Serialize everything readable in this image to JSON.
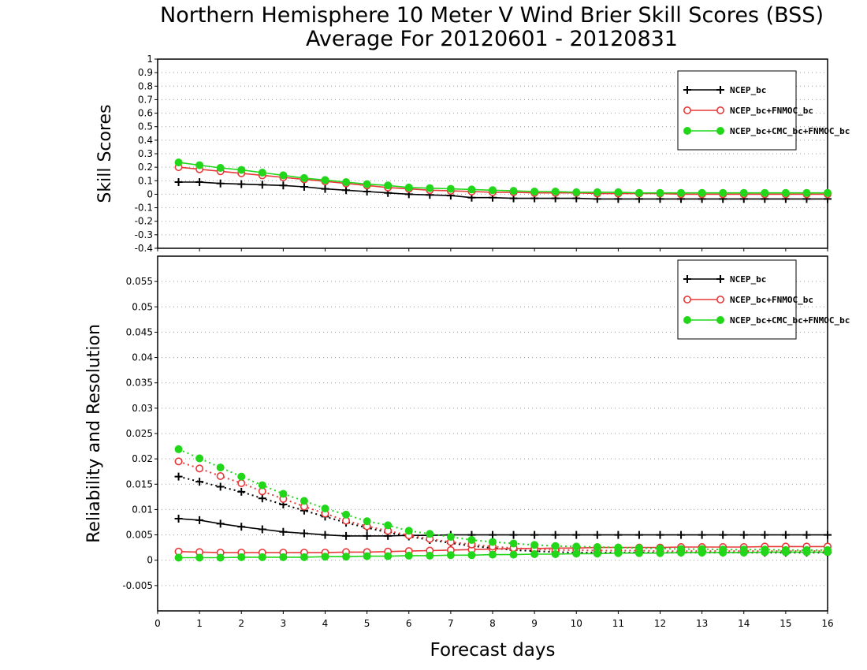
{
  "chart_title_line1": "Northern Hemisphere 10 Meter V Wind Brier Skill Scores (BSS)",
  "chart_title_line2": "Average For 20120601 - 20120831",
  "colors": {
    "black": "#000000",
    "red": "#e8393a",
    "green": "#22d61a",
    "grid": "#9a9a9a"
  },
  "chart_data": [
    {
      "type": "line",
      "panel": "top",
      "ylabel": "Skill Scores",
      "xlabel": "Forecast days",
      "xlim": [
        0,
        16
      ],
      "ylim": [
        -0.4,
        1
      ],
      "xticks": [
        "0",
        "1",
        "2",
        "3",
        "4",
        "5",
        "6",
        "7",
        "8",
        "9",
        "10",
        "11",
        "12",
        "13",
        "14",
        "15",
        "16"
      ],
      "yticks": [
        "1",
        "0.9",
        "0.8",
        "0.7",
        "0.6",
        "0.5",
        "0.4",
        "0.3",
        "0.2",
        "0.1",
        "0",
        "-0.1",
        "-0.2",
        "-0.3",
        "-0.4"
      ],
      "grid": true,
      "legend_position": "top-right",
      "x": [
        0.5,
        1,
        1.5,
        2,
        2.5,
        3,
        3.5,
        4,
        4.5,
        5,
        5.5,
        6,
        6.5,
        7,
        7.5,
        8,
        8.5,
        9,
        9.5,
        10,
        10.5,
        11,
        11.5,
        12,
        12.5,
        13,
        13.5,
        14,
        14.5,
        15,
        15.5,
        16
      ],
      "series": [
        {
          "name": "NCEP_bc",
          "marker": "plus",
          "color": "#000000",
          "values": [
            0.09,
            0.09,
            0.08,
            0.075,
            0.07,
            0.065,
            0.055,
            0.04,
            0.03,
            0.02,
            0.01,
            0.0,
            -0.005,
            -0.01,
            -0.025,
            -0.025,
            -0.03,
            -0.03,
            -0.03,
            -0.03,
            -0.035,
            -0.035,
            -0.035,
            -0.035,
            -0.035,
            -0.035,
            -0.035,
            -0.035,
            -0.035,
            -0.035,
            -0.035,
            -0.035
          ]
        },
        {
          "name": "NCEP_bc+FNMOC_bc",
          "marker": "open-circle",
          "color": "#e8393a",
          "values": [
            0.2,
            0.185,
            0.17,
            0.155,
            0.14,
            0.125,
            0.11,
            0.095,
            0.08,
            0.065,
            0.05,
            0.04,
            0.03,
            0.025,
            0.02,
            0.015,
            0.015,
            0.01,
            0.01,
            0.01,
            0.005,
            0.005,
            0.005,
            0.005,
            0.0,
            0.0,
            0.0,
            0.0,
            0.0,
            0.0,
            0.0,
            0.0
          ]
        },
        {
          "name": "NCEP_bc+CMC_bc+FNMOC_bc",
          "marker": "filled-circle",
          "color": "#22d61a",
          "values": [
            0.235,
            0.215,
            0.195,
            0.18,
            0.16,
            0.14,
            0.12,
            0.105,
            0.09,
            0.075,
            0.065,
            0.05,
            0.045,
            0.04,
            0.035,
            0.03,
            0.025,
            0.02,
            0.02,
            0.015,
            0.015,
            0.015,
            0.01,
            0.01,
            0.01,
            0.01,
            0.01,
            0.01,
            0.01,
            0.01,
            0.01,
            0.01
          ]
        }
      ]
    },
    {
      "type": "line",
      "panel": "bottom",
      "ylabel": "Reliability and Resolution",
      "xlabel": "Forecast days",
      "xlim": [
        0,
        16
      ],
      "ylim": [
        -0.01,
        0.06
      ],
      "xticks": [
        "0",
        "1",
        "2",
        "3",
        "4",
        "5",
        "6",
        "7",
        "8",
        "9",
        "10",
        "11",
        "12",
        "13",
        "14",
        "15",
        "16"
      ],
      "yticks": [
        "0.055",
        "0.05",
        "0.045",
        "0.04",
        "0.035",
        "0.03",
        "0.025",
        "0.02",
        "0.015",
        "0.01",
        "0.005",
        "0",
        "-0.005"
      ],
      "grid": true,
      "legend_position": "top-right",
      "x": [
        0.5,
        1,
        1.5,
        2,
        2.5,
        3,
        3.5,
        4,
        4.5,
        5,
        5.5,
        6,
        6.5,
        7,
        7.5,
        8,
        8.5,
        9,
        9.5,
        10,
        10.5,
        11,
        11.5,
        12,
        12.5,
        13,
        13.5,
        14,
        14.5,
        15,
        15.5,
        16
      ],
      "series": [
        {
          "name": "NCEP_bc",
          "metric": "resolution",
          "style": "solid",
          "marker": "plus",
          "color": "#000000",
          "values": [
            0.0082,
            0.0079,
            0.0072,
            0.0066,
            0.0061,
            0.0056,
            0.0053,
            0.005,
            0.0048,
            0.0048,
            0.0048,
            0.0049,
            0.0049,
            0.005,
            0.005,
            0.005,
            0.005,
            0.005,
            0.005,
            0.005,
            0.005,
            0.005,
            0.005,
            0.005,
            0.005,
            0.005,
            0.005,
            0.005,
            0.005,
            0.005,
            0.005,
            0.005
          ]
        },
        {
          "name": "NCEP_bc",
          "metric": "reliability",
          "style": "dotted",
          "marker": "plus",
          "color": "#000000",
          "values": [
            0.0165,
            0.0155,
            0.0145,
            0.0135,
            0.0122,
            0.011,
            0.0098,
            0.0086,
            0.0074,
            0.0064,
            0.0055,
            0.0047,
            0.004,
            0.0034,
            0.0028,
            0.0024,
            0.002,
            0.0018,
            0.0016,
            0.0015,
            0.0015,
            0.0015,
            0.0015,
            0.0015,
            0.0015,
            0.0015,
            0.0015,
            0.0015,
            0.0015,
            0.0015,
            0.0015,
            0.0015
          ]
        },
        {
          "name": "NCEP_bc+FNMOC_bc",
          "metric": "resolution",
          "style": "solid",
          "marker": "open-circle",
          "color": "#e8393a",
          "values": [
            0.0017,
            0.0016,
            0.0015,
            0.0015,
            0.0015,
            0.0015,
            0.0015,
            0.0015,
            0.0016,
            0.0016,
            0.0017,
            0.0018,
            0.0019,
            0.002,
            0.0021,
            0.0022,
            0.0023,
            0.0023,
            0.0024,
            0.0024,
            0.0025,
            0.0025,
            0.0025,
            0.0025,
            0.0026,
            0.0026,
            0.0026,
            0.0026,
            0.0027,
            0.0027,
            0.0027,
            0.0027
          ]
        },
        {
          "name": "NCEP_bc+FNMOC_bc",
          "metric": "reliability",
          "style": "dotted",
          "marker": "open-circle",
          "color": "#e8393a",
          "values": [
            0.0195,
            0.0181,
            0.0166,
            0.0152,
            0.0136,
            0.0121,
            0.0106,
            0.0092,
            0.0078,
            0.0067,
            0.0058,
            0.0049,
            0.0042,
            0.0036,
            0.0031,
            0.0027,
            0.0024,
            0.0022,
            0.002,
            0.002,
            0.0019,
            0.0019,
            0.0019,
            0.0018,
            0.0018,
            0.0018,
            0.0018,
            0.0018,
            0.0018,
            0.0018,
            0.0018,
            0.0018
          ]
        },
        {
          "name": "NCEP_bc+CMC_bc+FNMOC_bc",
          "metric": "resolution",
          "style": "solid",
          "marker": "filled-circle",
          "color": "#22d61a",
          "values": [
            0.0005,
            0.0005,
            0.0005,
            0.0006,
            0.0006,
            0.0006,
            0.0006,
            0.0007,
            0.0007,
            0.0008,
            0.0008,
            0.0009,
            0.0009,
            0.001,
            0.001,
            0.0011,
            0.0011,
            0.0012,
            0.0012,
            0.0013,
            0.0013,
            0.0014,
            0.0014,
            0.0014,
            0.0015,
            0.0015,
            0.0015,
            0.0015,
            0.0016,
            0.0016,
            0.0016,
            0.0016
          ]
        },
        {
          "name": "NCEP_bc+CMC_bc+FNMOC_bc",
          "metric": "reliability",
          "style": "dotted",
          "marker": "filled-circle",
          "color": "#22d61a",
          "values": [
            0.0219,
            0.0201,
            0.0183,
            0.0165,
            0.0148,
            0.0131,
            0.0117,
            0.0102,
            0.009,
            0.0077,
            0.0069,
            0.0058,
            0.0052,
            0.0046,
            0.004,
            0.0036,
            0.0033,
            0.003,
            0.0028,
            0.0027,
            0.0026,
            0.0025,
            0.0024,
            0.0023,
            0.0022,
            0.0022,
            0.0021,
            0.0021,
            0.0021,
            0.002,
            0.002,
            0.002
          ]
        }
      ]
    }
  ]
}
